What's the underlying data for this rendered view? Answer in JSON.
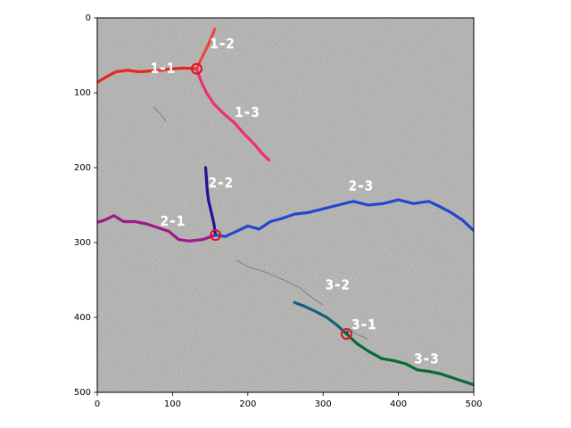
{
  "axes": {
    "xlim": [
      0,
      500
    ],
    "ylim": [
      500,
      0
    ],
    "x_ticks": [
      0,
      100,
      200,
      300,
      400,
      500
    ],
    "y_ticks": [
      0,
      100,
      200,
      300,
      400,
      500
    ],
    "x_tick_labels": [
      "0",
      "100",
      "200",
      "300",
      "400",
      "500"
    ],
    "y_tick_labels": [
      "0",
      "100",
      "200",
      "300",
      "400",
      "500"
    ],
    "y_inverted": true
  },
  "background": {
    "description_icon": "asphalt-texture",
    "base_color": "#9e9e9c"
  },
  "cracks": [
    {
      "id": "1",
      "junction": [
        132,
        68
      ],
      "junction_color": "#e3121b",
      "segments": [
        {
          "label": "1-1",
          "color": "#e8261a",
          "label_pos": [
            87,
            68
          ],
          "points": [
            [
              0,
              86
            ],
            [
              10,
              80
            ],
            [
              25,
              72
            ],
            [
              40,
              70
            ],
            [
              55,
              72
            ],
            [
              70,
              71
            ],
            [
              85,
              70
            ],
            [
              100,
              68
            ],
            [
              115,
              67
            ],
            [
              132,
              68
            ]
          ]
        },
        {
          "label": "1-2",
          "color": "#f0453a",
          "label_pos": [
            166,
            35
          ],
          "points": [
            [
              132,
              68
            ],
            [
              138,
              55
            ],
            [
              143,
              45
            ],
            [
              148,
              35
            ],
            [
              152,
              25
            ],
            [
              156,
              15
            ]
          ]
        },
        {
          "label": "1-3",
          "color": "#ee2d7a",
          "label_pos": [
            199,
            127
          ],
          "points": [
            [
              132,
              68
            ],
            [
              138,
              85
            ],
            [
              145,
              100
            ],
            [
              155,
              115
            ],
            [
              168,
              128
            ],
            [
              182,
              140
            ],
            [
              195,
              155
            ],
            [
              208,
              168
            ],
            [
              218,
              180
            ],
            [
              228,
              190
            ]
          ]
        }
      ]
    },
    {
      "id": "2",
      "junction": [
        157,
        290
      ],
      "junction_color": "#e3121b",
      "segments": [
        {
          "label": "2-1",
          "color": "#a0198a",
          "label_pos": [
            100,
            272
          ],
          "points": [
            [
              0,
              273
            ],
            [
              10,
              270
            ],
            [
              22,
              264
            ],
            [
              35,
              272
            ],
            [
              50,
              272
            ],
            [
              65,
              275
            ],
            [
              80,
              280
            ],
            [
              95,
              285
            ],
            [
              108,
              296
            ],
            [
              122,
              298
            ],
            [
              140,
              296
            ],
            [
              157,
              290
            ]
          ]
        },
        {
          "label": "2-2",
          "color": "#2a0e96",
          "label_pos": [
            164,
            221
          ],
          "points": [
            [
              144,
              200
            ],
            [
              145,
              215
            ],
            [
              146,
              230
            ],
            [
              148,
              245
            ],
            [
              152,
              262
            ],
            [
              155,
              275
            ],
            [
              157,
              290
            ]
          ]
        },
        {
          "label": "2-3",
          "color": "#2447cc",
          "label_pos": [
            350,
            225
          ],
          "points": [
            [
              157,
              290
            ],
            [
              170,
              292
            ],
            [
              185,
              285
            ],
            [
              200,
              278
            ],
            [
              215,
              282
            ],
            [
              230,
              272
            ],
            [
              245,
              268
            ],
            [
              262,
              262
            ],
            [
              280,
              260
            ],
            [
              300,
              255
            ],
            [
              320,
              250
            ],
            [
              340,
              245
            ],
            [
              360,
              250
            ],
            [
              380,
              248
            ],
            [
              400,
              243
            ],
            [
              420,
              248
            ],
            [
              440,
              245
            ],
            [
              455,
              252
            ],
            [
              470,
              260
            ],
            [
              485,
              270
            ],
            [
              500,
              284
            ]
          ]
        }
      ]
    },
    {
      "id": "3",
      "junction": [
        331,
        422
      ],
      "junction_color": "#e3121b",
      "segments": [
        {
          "label": "3-1",
          "color": "#1a2a6a",
          "label_pos": [
            354,
            410
          ],
          "points": [
            [
              331,
              422
            ],
            [
              332,
              420
            ]
          ]
        },
        {
          "label": "3-2",
          "color": "#0e6478",
          "label_pos": [
            319,
            357
          ],
          "points": [
            [
              262,
              380
            ],
            [
              275,
              385
            ],
            [
              290,
              392
            ],
            [
              305,
              400
            ],
            [
              318,
              410
            ],
            [
              331,
              422
            ]
          ]
        },
        {
          "label": "3-3",
          "color": "#0a6a36",
          "label_pos": [
            437,
            456
          ],
          "points": [
            [
              331,
              422
            ],
            [
              345,
              435
            ],
            [
              360,
              445
            ],
            [
              378,
              455
            ],
            [
              395,
              458
            ],
            [
              410,
              462
            ],
            [
              425,
              470
            ],
            [
              440,
              472
            ],
            [
              455,
              475
            ],
            [
              470,
              480
            ],
            [
              485,
              485
            ],
            [
              500,
              490
            ]
          ]
        }
      ]
    }
  ]
}
